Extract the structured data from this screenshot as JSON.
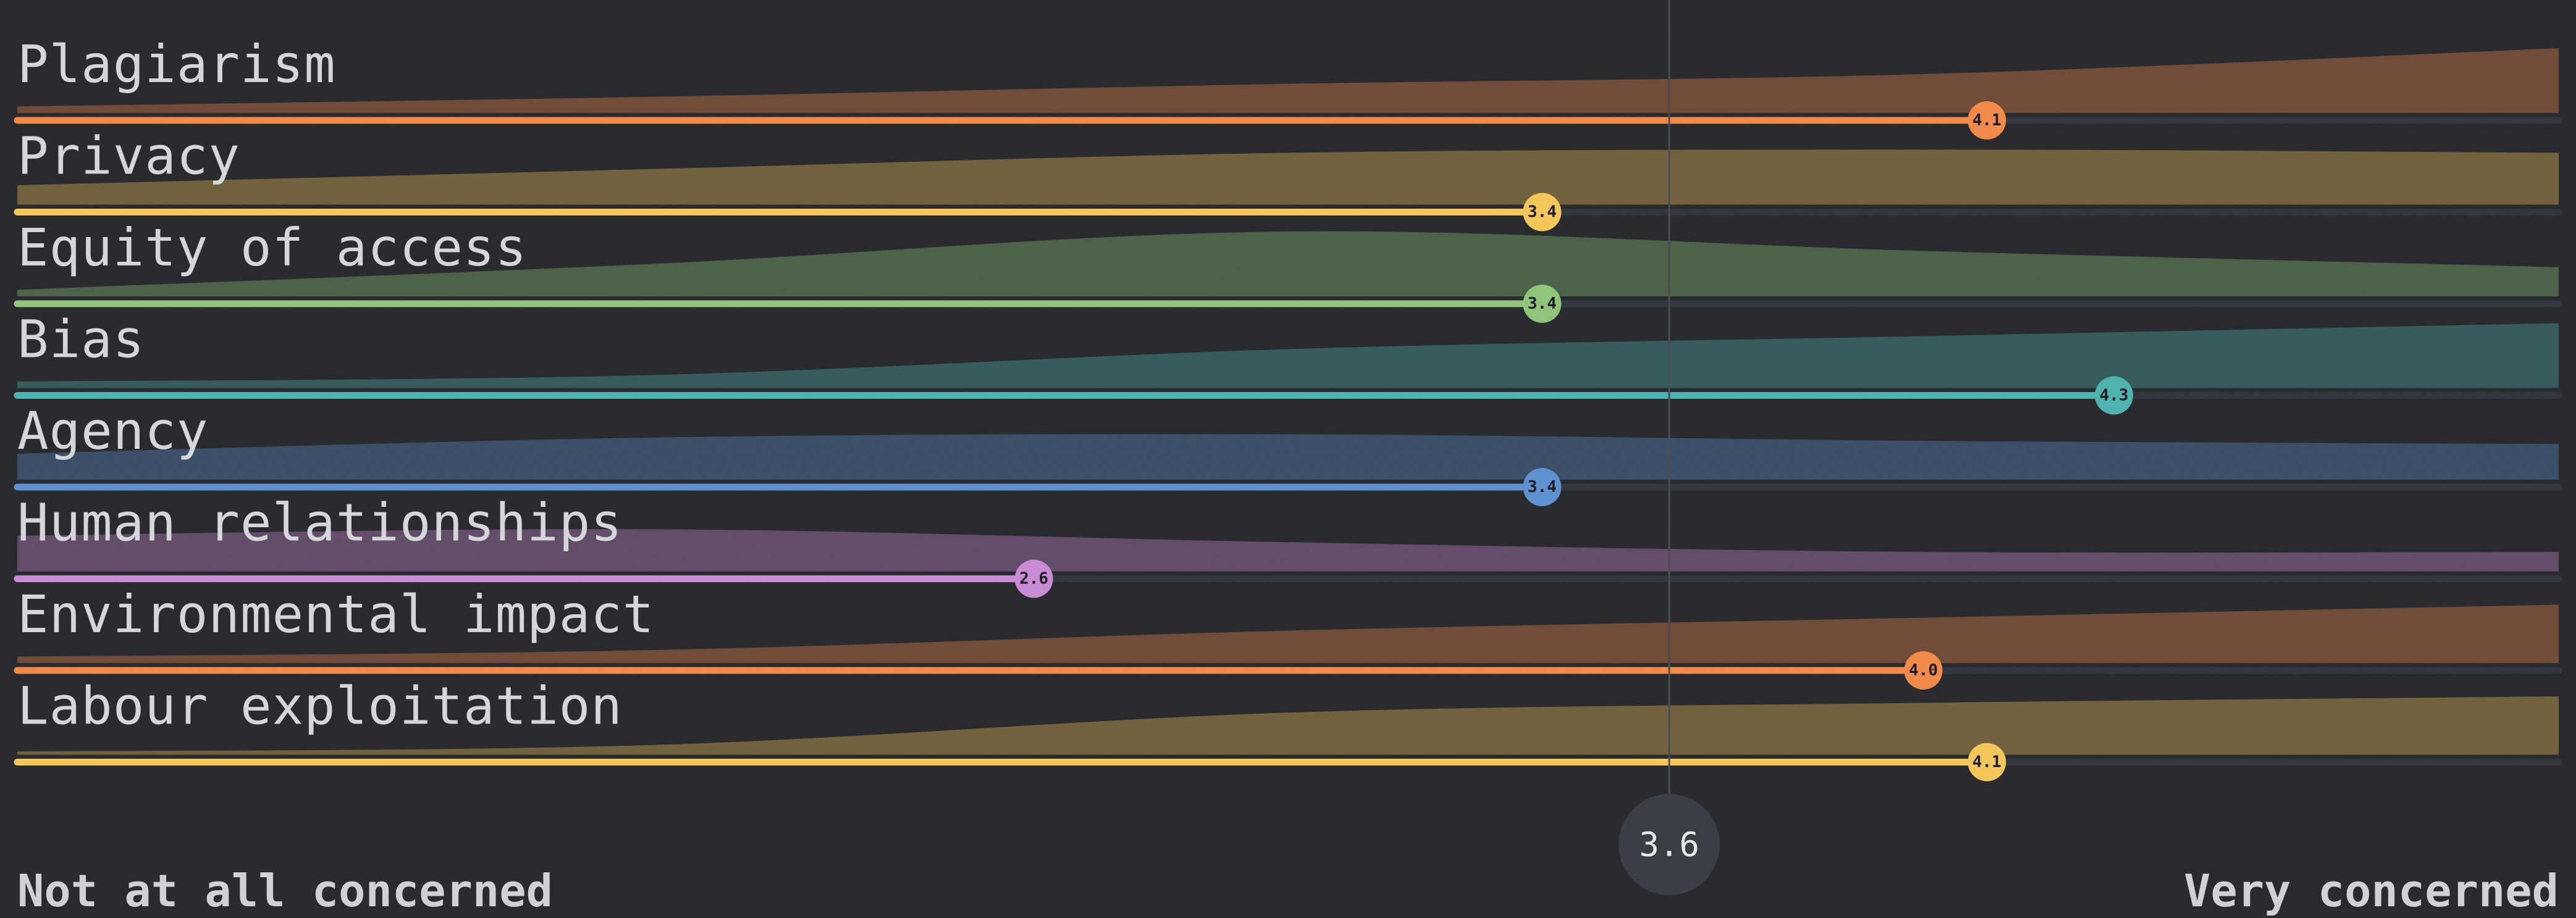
{
  "chart_data": {
    "type": "bar",
    "categories": [
      "Plagiarism",
      "Privacy",
      "Equity of access",
      "Bias",
      "Agency",
      "Human relationships",
      "Environmental impact",
      "Labour exploitation"
    ],
    "series": [
      {
        "values": [
          4.1,
          3.4,
          3.4,
          4.3,
          3.4,
          2.6,
          4.0,
          4.1
        ],
        "value_labels": [
          "4.1",
          "3.4",
          "3.4",
          "4.3",
          "3.4",
          "2.6",
          "4.0",
          "4.1"
        ]
      }
    ],
    "distributions": [
      [
        0.1,
        0.25,
        0.45,
        0.6,
        1.0
      ],
      [
        0.3,
        0.55,
        0.8,
        0.85,
        0.8
      ],
      [
        0.1,
        0.5,
        1.0,
        0.7,
        0.45
      ],
      [
        0.1,
        0.2,
        0.6,
        0.8,
        1.0
      ],
      [
        0.4,
        0.65,
        0.7,
        0.6,
        0.55
      ],
      [
        0.55,
        0.65,
        0.45,
        0.3,
        0.3
      ],
      [
        0.1,
        0.2,
        0.5,
        0.7,
        0.9
      ],
      [
        0.05,
        0.15,
        0.65,
        0.8,
        0.9
      ]
    ],
    "colors": [
      "#f28a4a",
      "#f5c65a",
      "#8fc47a",
      "#4fb3b0",
      "#5d91cf",
      "#c98bd4",
      "#f28a4a",
      "#f5c65a"
    ],
    "xlim": [
      1,
      5
    ],
    "mean": 3.6,
    "mean_label": "3.6",
    "axis_left_label": "Not at all concerned",
    "axis_right_label": "Very concerned",
    "title": "",
    "xlabel": "",
    "ylabel": "",
    "grid": false,
    "legend": "none"
  }
}
